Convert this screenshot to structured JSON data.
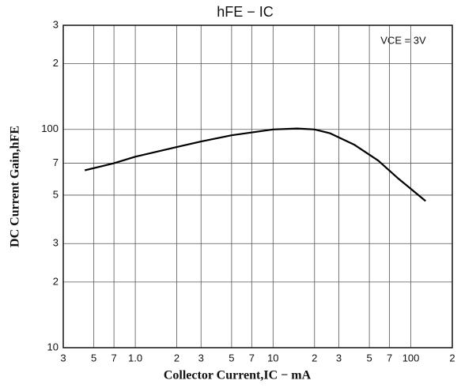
{
  "chart_data": {
    "type": "line",
    "title": "hFE − IC",
    "annotation": "VCE = 3V",
    "x_label": "Collector Current,IC − mA",
    "y_label": "DC Current Gain,hFE",
    "xscale": "log",
    "yscale": "log",
    "grid": true,
    "xlim": [
      0.3,
      200
    ],
    "ylim": [
      10,
      300
    ],
    "xticks": [
      {
        "value": 0.3,
        "label": "3"
      },
      {
        "value": 0.5,
        "label": "5"
      },
      {
        "value": 0.7,
        "label": "7"
      },
      {
        "value": 1,
        "label": "1.0"
      },
      2,
      3,
      5,
      7,
      10,
      {
        "value": 20,
        "label": "2"
      },
      {
        "value": 30,
        "label": "3"
      },
      {
        "value": 50,
        "label": "5"
      },
      {
        "value": 70,
        "label": "7"
      },
      100,
      {
        "value": 200,
        "label": "2"
      }
    ],
    "yticks": [
      10,
      {
        "value": 20,
        "label": "2"
      },
      {
        "value": 30,
        "label": "3"
      },
      {
        "value": 50,
        "label": "5"
      },
      {
        "value": 70,
        "label": "7"
      },
      100,
      {
        "value": 200,
        "label": "2"
      },
      {
        "value": 300,
        "label": "3"
      }
    ],
    "x": [
      0.43,
      0.7,
      1,
      2,
      3,
      5,
      10,
      15,
      20,
      26,
      39,
      58,
      80,
      128
    ],
    "series": [
      {
        "color": "#000000",
        "values": [
          65,
          70,
          75,
          83,
          88,
          94,
          100,
          101,
          100,
          96,
          85,
          72,
          60,
          47
        ]
      }
    ]
  }
}
